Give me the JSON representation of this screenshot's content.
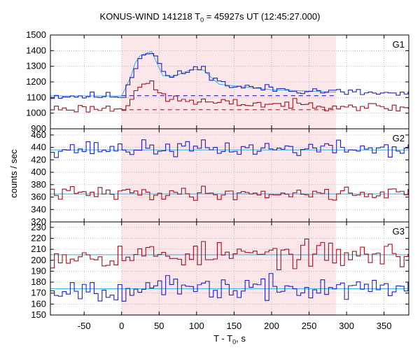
{
  "title": {
    "prefix": "KONUS-WIND 141218 T",
    "sub": "0",
    "suffix": " = 45927s UT (12:45:27.000)"
  },
  "xlabel": {
    "prefix": "T - T",
    "sub": "0",
    "suffix": ", s"
  },
  "ylabel": "counts / sec",
  "colors": {
    "blue": "#2020c0",
    "red": "#a01020",
    "fit": "#40b8e8",
    "band": "#fbe6ea",
    "grid": "#999999"
  },
  "chart_data": {
    "type": "line",
    "style": "step",
    "shared_x": {
      "label": "T - T0, s",
      "range": [
        -95,
        383
      ],
      "ticks": [
        -50,
        0,
        50,
        100,
        150,
        200,
        250,
        300,
        350
      ]
    },
    "shaded_interval": [
      0,
      286
    ],
    "panels": [
      {
        "name": "G1",
        "ylim": [
          900,
          1500
        ],
        "yticks": [
          900,
          1000,
          1100,
          1200,
          1300,
          1400,
          1500
        ],
        "series": [
          {
            "color": "blue",
            "step": 5.3,
            "start": -95,
            "levels": [
              [
                -95,
                1110
              ],
              [
                0,
                1110
              ],
              [
                5,
                1170
              ],
              [
                12,
                1240
              ],
              [
                18,
                1330
              ],
              [
                25,
                1375
              ],
              [
                40,
                1400
              ],
              [
                47,
                1330
              ],
              [
                55,
                1240
              ],
              [
                70,
                1235
              ],
              [
                85,
                1270
              ],
              [
                95,
                1285
              ],
              [
                110,
                1280
              ],
              [
                118,
                1240
              ],
              [
                130,
                1190
              ],
              [
                150,
                1170
              ],
              [
                200,
                1155
              ],
              [
                250,
                1145
              ],
              [
                286,
                1135
              ],
              [
                383,
                1120
              ]
            ],
            "noise": 22,
            "seed": 11
          },
          {
            "color": "red",
            "step": 5.3,
            "start": -95,
            "levels": [
              [
                -95,
                1030
              ],
              [
                0,
                1030
              ],
              [
                8,
                1080
              ],
              [
                15,
                1140
              ],
              [
                22,
                1180
              ],
              [
                35,
                1190
              ],
              [
                45,
                1140
              ],
              [
                60,
                1090
              ],
              [
                90,
                1080
              ],
              [
                120,
                1065
              ],
              [
                286,
                1050
              ],
              [
                383,
                1030
              ]
            ],
            "noise": 24,
            "seed": 23
          }
        ],
        "fits": [
          {
            "color": "fit",
            "points": [
              [
                -95,
                1110
              ],
              [
                0,
                1110
              ],
              [
                5,
                1160
              ],
              [
                12,
                1230
              ],
              [
                18,
                1320
              ],
              [
                25,
                1370
              ],
              [
                40,
                1395
              ],
              [
                47,
                1320
              ],
              [
                55,
                1240
              ],
              [
                70,
                1235
              ],
              [
                85,
                1265
              ],
              [
                95,
                1280
              ],
              [
                110,
                1275
              ],
              [
                118,
                1235
              ],
              [
                130,
                1185
              ],
              [
                200,
                1150
              ],
              [
                286,
                1135
              ]
            ]
          },
          {
            "color": "blue",
            "dashed": true,
            "points": [
              [
                0,
                1112
              ],
              [
                286,
                1112
              ]
            ]
          },
          {
            "color": "red",
            "dashed": true,
            "points": [
              [
                0,
                1022
              ],
              [
                286,
                1022
              ]
            ]
          }
        ]
      },
      {
        "name": "G2",
        "ylim": [
          320,
          470
        ],
        "yticks": [
          320,
          340,
          360,
          380,
          400,
          420,
          440,
          460
        ],
        "series": [
          {
            "color": "blue",
            "step": 5.3,
            "start": -95,
            "levels": [
              [
                -95,
                438
              ],
              [
                383,
                438
              ]
            ],
            "noise": 11,
            "seed": 37
          },
          {
            "color": "red",
            "step": 5.3,
            "start": -95,
            "levels": [
              [
                -95,
                366
              ],
              [
                383,
                366
              ]
            ],
            "noise": 9,
            "seed": 41
          }
        ],
        "fits": [
          {
            "color": "fit",
            "points": [
              [
                -95,
                436
              ],
              [
                383,
                436
              ]
            ]
          },
          {
            "color": "fit",
            "points": [
              [
                -95,
                365
              ],
              [
                383,
                365
              ]
            ]
          }
        ]
      },
      {
        "name": "G3",
        "ylim": [
          150,
          235
        ],
        "yticks": [
          150,
          160,
          170,
          180,
          190,
          200,
          210,
          220,
          230
        ],
        "series": [
          {
            "color": "red",
            "step": 5.3,
            "start": -95,
            "levels": [
              [
                -95,
                205
              ],
              [
                383,
                205
              ]
            ],
            "noise": 10,
            "seed": 53
          },
          {
            "color": "blue",
            "step": 5.3,
            "start": -95,
            "levels": [
              [
                -95,
                174
              ],
              [
                383,
                174
              ]
            ],
            "noise": 9,
            "seed": 67
          }
        ],
        "fits": [
          {
            "color": "fit",
            "points": [
              [
                -95,
                205
              ],
              [
                383,
                205
              ]
            ]
          },
          {
            "color": "fit",
            "points": [
              [
                -95,
                174
              ],
              [
                383,
                174
              ]
            ]
          }
        ]
      }
    ]
  }
}
